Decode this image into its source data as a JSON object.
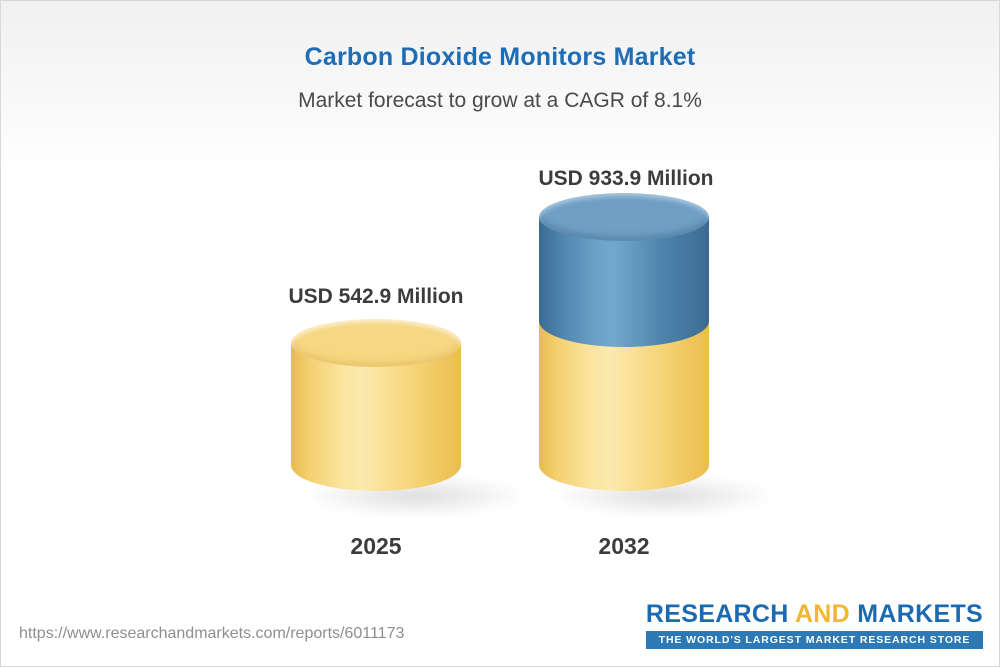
{
  "header": {
    "title": "Carbon Dioxide Monitors Market",
    "subtitle": "Market forecast to grow at a CAGR of 8.1%"
  },
  "chart_data": {
    "type": "bar",
    "style": "3d-cylinder",
    "categories": [
      "2025",
      "2032"
    ],
    "values": [
      542.9,
      933.9
    ],
    "value_labels": [
      "USD 542.9 Million",
      "USD 933.9 Million"
    ],
    "unit": "USD Million",
    "cagr_percent": 8.1,
    "grid": false,
    "legend": "none",
    "colors": {
      "bar_2025": "#f6d782",
      "bar_2032_base": "#f6d782",
      "bar_2032_growth": "#5288b1",
      "title": "#1e6db5"
    }
  },
  "footer": {
    "url": "https://www.researchandmarkets.com/reports/6011173",
    "logo": {
      "word1": "RESEARCH",
      "word2": "AND",
      "word3": "MARKETS",
      "tagline": "THE WORLD'S LARGEST MARKET RESEARCH STORE"
    }
  }
}
